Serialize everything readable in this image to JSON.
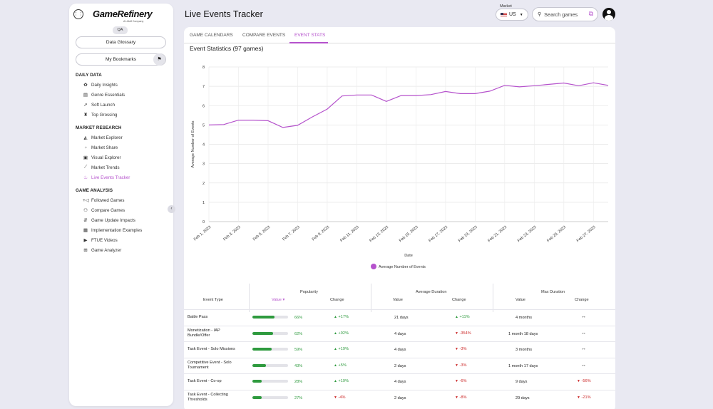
{
  "sidebar": {
    "logo": "GameRefinery",
    "logo_sub": "A Liftoff Company",
    "badge": "QA",
    "glossary_btn": "Data Glossary",
    "bookmarks_btn": "My Bookmarks",
    "sections": [
      {
        "title": "DAILY DATA",
        "items": [
          "Daily Insights",
          "Genre Essentials",
          "Soft Launch",
          "Top Grossing"
        ]
      },
      {
        "title": "MARKET RESEARCH",
        "items": [
          "Market Explorer",
          "Market Share",
          "Visual Explorer",
          "Market Trends",
          "Live Events Tracker"
        ]
      },
      {
        "title": "GAME ANALYSIS",
        "items": [
          "Followed Games",
          "Compare Games",
          "Game Update Impacts",
          "Implementation Examples",
          "FTUE Videos",
          "Game Analyzer"
        ]
      }
    ]
  },
  "header": {
    "title": "Live Events Tracker",
    "market_label": "Market",
    "market_value": "US",
    "search_placeholder": "Search games"
  },
  "tabs": [
    "GAME CALENDARS",
    "COMPARE EVENTS",
    "EVENT STATS"
  ],
  "active_tab": "EVENT STATS",
  "chart_title": "Event Statistics (97 games)",
  "chart_data": {
    "type": "line",
    "xlabel": "Date",
    "ylabel": "Average Number of Events",
    "ylim": [
      0,
      8
    ],
    "yticks": [
      0,
      1,
      2,
      3,
      4,
      5,
      6,
      7,
      8
    ],
    "xtick_labels": [
      "Feb 1, 2023",
      "Feb 3, 2023",
      "Feb 5, 2023",
      "Feb 7, 2023",
      "Feb 9, 2023",
      "Feb 11, 2023",
      "Feb 13, 2023",
      "Feb 15, 2023",
      "Feb 17, 2023",
      "Feb 19, 2023",
      "Feb 21, 2023",
      "Feb 23, 2023",
      "Feb 25, 2023",
      "Feb 27, 2023"
    ],
    "legend": "Average Number of Events",
    "legend_position": "bottom",
    "grid": true,
    "color": "#b552cc",
    "series": [
      {
        "name": "Average Number of Events",
        "values": [
          5.0,
          5.02,
          5.25,
          5.25,
          5.22,
          4.87,
          4.98,
          5.42,
          5.82,
          6.5,
          6.55,
          6.55,
          6.22,
          6.52,
          6.52,
          6.57,
          6.73,
          6.62,
          6.62,
          6.75,
          7.05,
          6.97,
          7.03,
          7.1,
          7.17,
          7.03,
          7.18,
          7.05
        ]
      }
    ]
  },
  "table": {
    "headers": {
      "event_type": "Event Type",
      "popularity": "Popularity",
      "avg_duration": "Average Duration",
      "max_duration": "Max Duration",
      "value": "Value",
      "change": "Change"
    },
    "rows": [
      {
        "name": "Battle Pass",
        "pop_value": "66%",
        "pop_fill": 0.62,
        "pop_change": "+17%",
        "pop_dir": "up",
        "avg_value": "21 days",
        "avg_change": "+11%",
        "avg_dir": "up",
        "max_value": "4 months",
        "max_change": "",
        "max_dir": "flat"
      },
      {
        "name": "Monetization - IAP Bundle/Offer",
        "pop_value": "62%",
        "pop_fill": 0.58,
        "pop_change": "+92%",
        "pop_dir": "up",
        "avg_value": "4 days",
        "avg_change": "-354%",
        "avg_dir": "down",
        "max_value": "1 month 18 days",
        "max_change": "",
        "max_dir": "flat"
      },
      {
        "name": "Task Event - Solo Missions",
        "pop_value": "59%",
        "pop_fill": 0.53,
        "pop_change": "+19%",
        "pop_dir": "up",
        "avg_value": "4 days",
        "avg_change": "-3%",
        "avg_dir": "down",
        "max_value": "3 months",
        "max_change": "",
        "max_dir": "flat"
      },
      {
        "name": "Competitive Event - Solo Tournament",
        "pop_value": "43%",
        "pop_fill": 0.38,
        "pop_change": "+5%",
        "pop_dir": "up",
        "avg_value": "2 days",
        "avg_change": "-3%",
        "avg_dir": "down",
        "max_value": "1 month 17 days",
        "max_change": "",
        "max_dir": "flat"
      },
      {
        "name": "Task Event - Co-op",
        "pop_value": "28%",
        "pop_fill": 0.26,
        "pop_change": "+19%",
        "pop_dir": "up",
        "avg_value": "4 days",
        "avg_change": "-6%",
        "avg_dir": "down",
        "max_value": "9 days",
        "max_change": "-56%",
        "max_dir": "down"
      },
      {
        "name": "Task Event - Collecting Thresholds",
        "pop_value": "27%",
        "pop_fill": 0.25,
        "pop_change": "-4%",
        "pop_dir": "down",
        "avg_value": "2 days",
        "avg_change": "-8%",
        "avg_dir": "down",
        "max_value": "29 days",
        "max_change": "-21%",
        "max_dir": "down"
      }
    ]
  }
}
